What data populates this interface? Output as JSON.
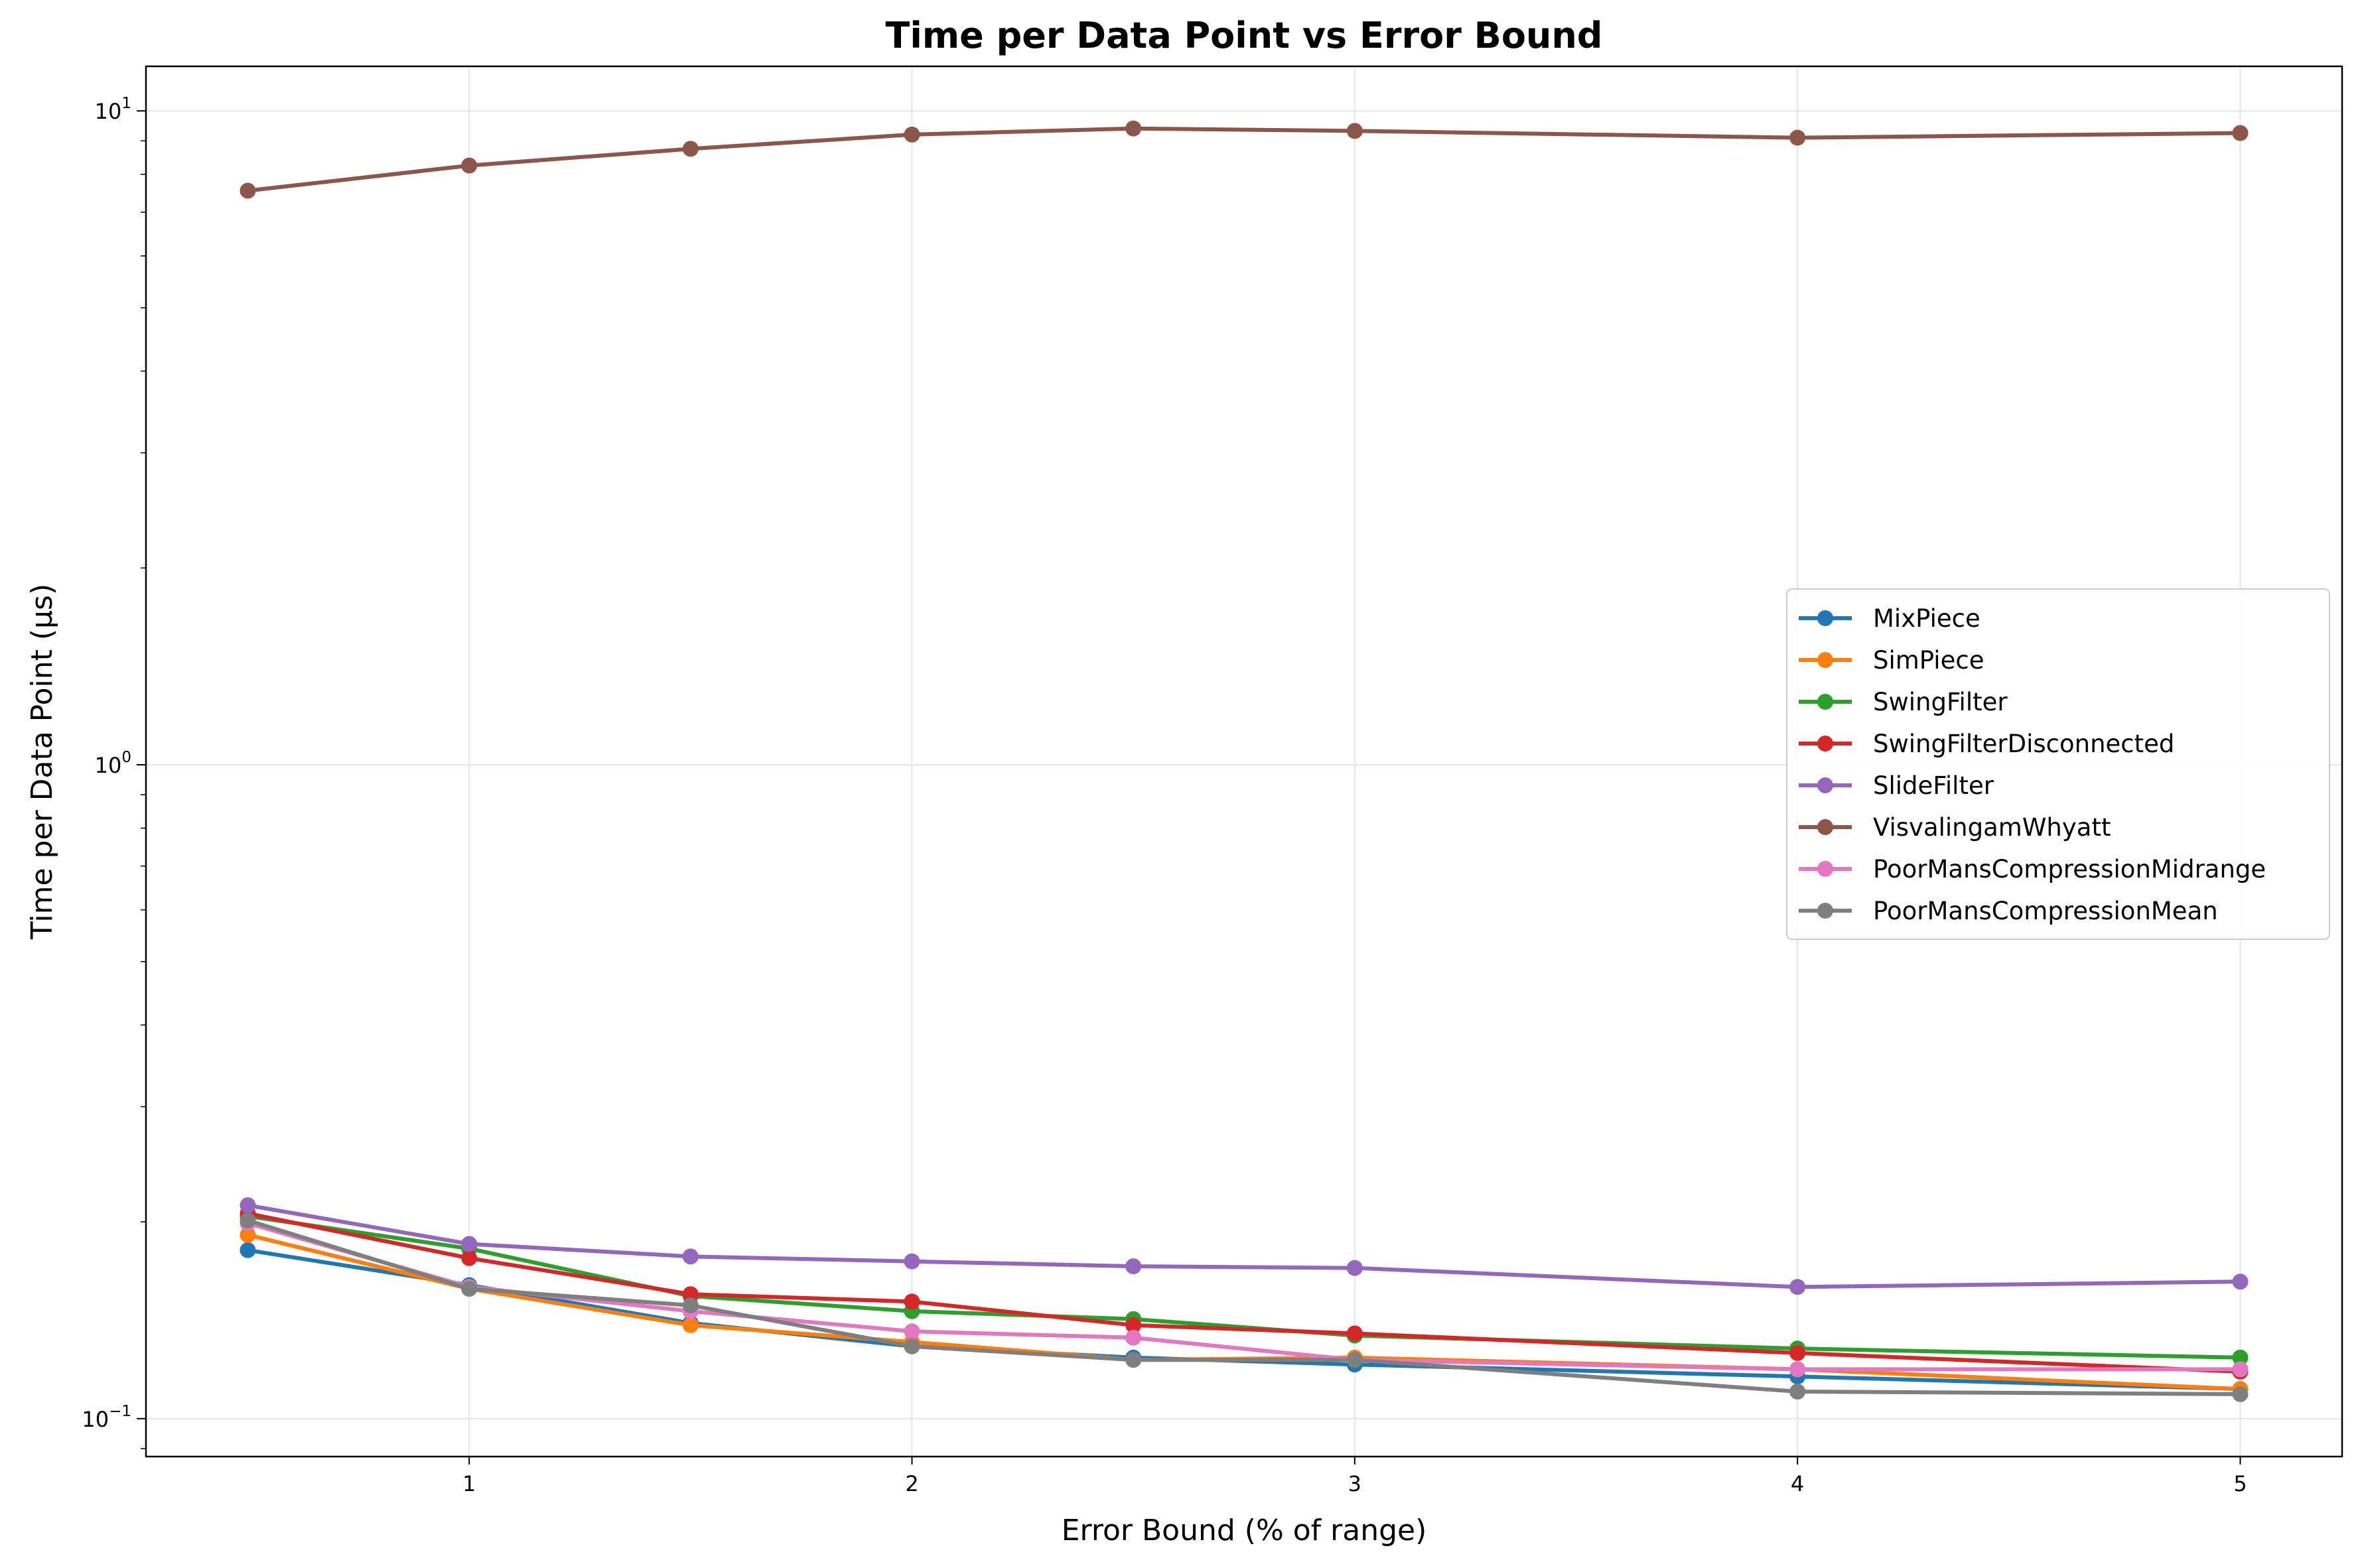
{
  "chart_data": {
    "type": "line",
    "title": "Time per Data Point vs Error Bound",
    "xlabel": "Error Bound (% of range)",
    "ylabel": "Time per Data Point (µs)",
    "yscale": "log",
    "xlim": [
      0.27,
      5.23
    ],
    "ylim": [
      0.0875,
      11.7
    ],
    "x_ticks": [
      1,
      2,
      3,
      4,
      5
    ],
    "y_ticks": [
      {
        "value": 0.1,
        "base": "10",
        "exp": "−1"
      },
      {
        "value": 1,
        "base": "10",
        "exp": "0"
      },
      {
        "value": 10,
        "base": "10",
        "exp": "1"
      }
    ],
    "grid": true,
    "legend_position": "center-right",
    "x": [
      0.5,
      1,
      1.5,
      2,
      2.5,
      3,
      4,
      5
    ],
    "series": [
      {
        "name": "MixPiece",
        "color": "#1f77b4",
        "values": [
          0.181,
          0.16,
          0.14,
          0.129,
          0.124,
          0.121,
          0.116,
          0.111
        ]
      },
      {
        "name": "SimPiece",
        "color": "#ff7f0e",
        "values": [
          0.191,
          0.158,
          0.139,
          0.131,
          0.123,
          0.124,
          0.119,
          0.111
        ]
      },
      {
        "name": "SwingFilter",
        "color": "#2ca02c",
        "values": [
          0.204,
          0.182,
          0.154,
          0.146,
          0.142,
          0.134,
          0.128,
          0.124
        ]
      },
      {
        "name": "SwingFilterDisconnected",
        "color": "#d62728",
        "values": [
          0.206,
          0.176,
          0.155,
          0.151,
          0.139,
          0.135,
          0.126,
          0.118
        ]
      },
      {
        "name": "SlideFilter",
        "color": "#9467bd",
        "values": [
          0.212,
          0.185,
          0.177,
          0.174,
          0.171,
          0.17,
          0.159,
          0.162
        ]
      },
      {
        "name": "VisvalingamWhyatt",
        "color": "#8c564b",
        "values": [
          7.55,
          8.25,
          8.75,
          9.2,
          9.4,
          9.32,
          9.1,
          9.25
        ]
      },
      {
        "name": "PoorMansCompressionMidrange",
        "color": "#e377c2",
        "values": [
          0.199,
          0.159,
          0.146,
          0.136,
          0.133,
          0.123,
          0.119,
          0.119
        ]
      },
      {
        "name": "PoorMansCompressionMean",
        "color": "#7f7f7f",
        "values": [
          0.201,
          0.158,
          0.149,
          0.129,
          0.123,
          0.123,
          0.11,
          0.109
        ]
      }
    ]
  }
}
